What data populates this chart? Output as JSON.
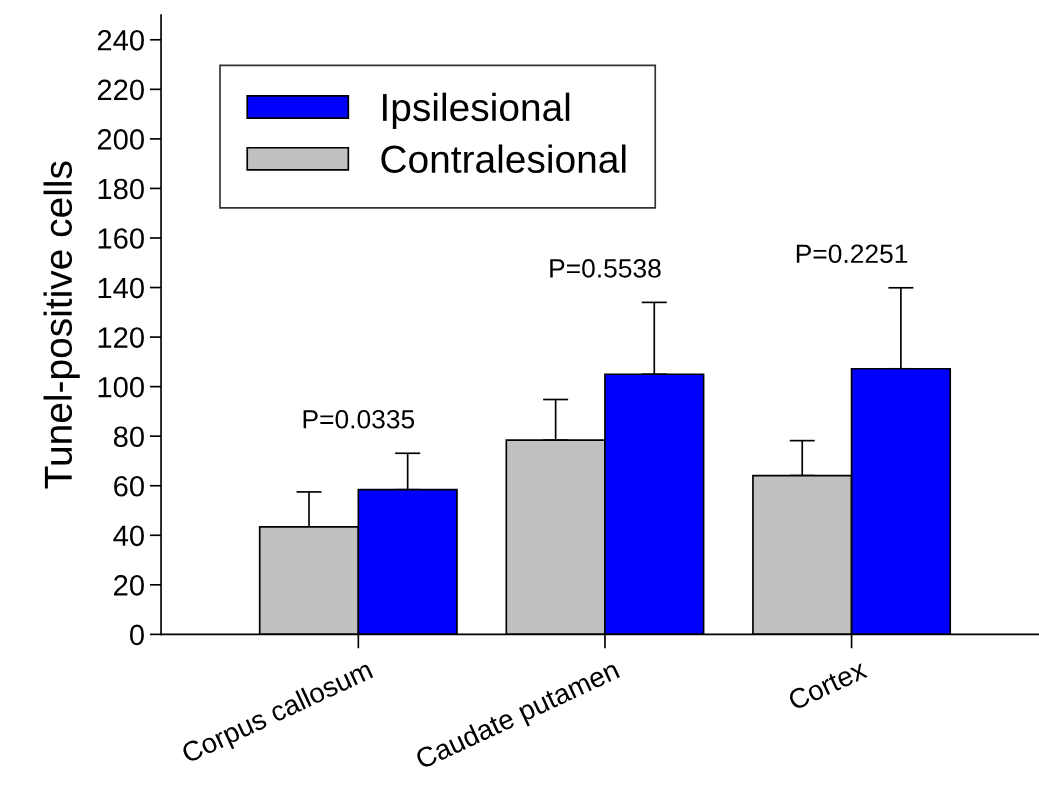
{
  "chart_data": {
    "type": "bar",
    "ylabel": "Tunel-positive cells",
    "categories": [
      "Corpus callosum",
      "Caudate putamen",
      "Cortex"
    ],
    "series": [
      {
        "name": "Contralesional",
        "color": "#c0c0c0",
        "values": [
          43.4,
          78.4,
          64.1
        ],
        "errors": [
          [
            43.4,
            57.5
          ],
          [
            78.4,
            94.8
          ],
          [
            64.1,
            78.2
          ]
        ]
      },
      {
        "name": "Ipsilesional",
        "color": "#0000ff",
        "values": [
          58.4,
          105.0,
          107.2
        ],
        "errors": [
          [
            58.4,
            73.1
          ],
          [
            105.0,
            134.0
          ],
          [
            107.2,
            139.9
          ]
        ]
      }
    ],
    "ylim": [
      0,
      250
    ],
    "yticks": [
      0,
      20,
      40,
      60,
      80,
      100,
      120,
      140,
      160,
      180,
      200,
      220,
      240
    ],
    "annotations": [
      "P=0.0335",
      "P=0.5538",
      "P=0.2251"
    ],
    "grid": false,
    "legend": "top left"
  }
}
